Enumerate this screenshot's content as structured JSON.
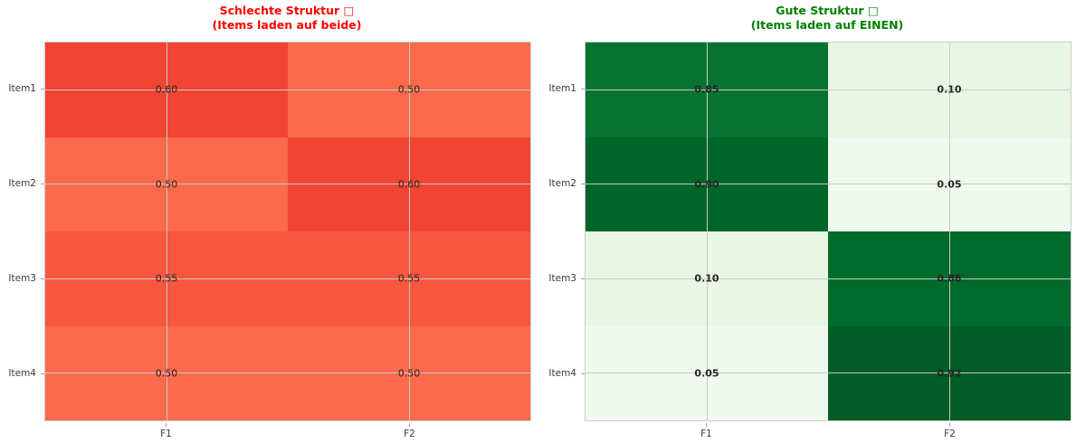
{
  "chart_data": [
    {
      "type": "heatmap",
      "title": "Schlechte Struktur □",
      "subtitle": "(Items laden auf beide)",
      "title_color": "#ff0000",
      "colormap": "Reds",
      "vmin": 0,
      "vmax": 1,
      "x_categories": [
        "F1",
        "F2"
      ],
      "y_categories": [
        "Item1",
        "Item2",
        "Item3",
        "Item4"
      ],
      "values": [
        [
          0.6,
          0.5
        ],
        [
          0.5,
          0.6
        ],
        [
          0.55,
          0.55
        ],
        [
          0.5,
          0.5
        ]
      ],
      "annotations": [
        [
          "0.60",
          "0.50"
        ],
        [
          "0.50",
          "0.60"
        ],
        [
          "0.55",
          "0.55"
        ],
        [
          "0.50",
          "0.50"
        ]
      ],
      "annotations_bold": false,
      "legend": "none",
      "grid": true
    },
    {
      "type": "heatmap",
      "title": "Gute Struktur □",
      "subtitle": "(Items laden auf EINEN)",
      "title_color": "#008000",
      "colormap": "Greens",
      "vmin": 0,
      "vmax": 1,
      "x_categories": [
        "F1",
        "F2"
      ],
      "y_categories": [
        "Item1",
        "Item2",
        "Item3",
        "Item4"
      ],
      "values": [
        [
          0.85,
          0.1
        ],
        [
          0.9,
          0.05
        ],
        [
          0.1,
          0.88
        ],
        [
          0.05,
          0.92
        ]
      ],
      "annotations": [
        [
          "0.85",
          "0.10"
        ],
        [
          "0.90",
          "0.05"
        ],
        [
          "0.10",
          "0.88"
        ],
        [
          "0.05",
          "0.92"
        ]
      ],
      "annotations_bold": true,
      "legend": "none",
      "grid": true
    }
  ],
  "style": {
    "background": "#ffffff",
    "grid_color": "#c8c8c8",
    "frame_color": "#cccccc",
    "tick_color": "#9a9a9a",
    "tick_label_color": "#3a3a3a",
    "annotation_color": "#262626",
    "colormap_stops": {
      "Reds": [
        [
          0.0,
          "#fff5f0"
        ],
        [
          0.125,
          "#fee0d2"
        ],
        [
          0.25,
          "#fcbba1"
        ],
        [
          0.375,
          "#fc9272"
        ],
        [
          0.5,
          "#fb6a4a"
        ],
        [
          0.625,
          "#ef3b2c"
        ],
        [
          0.75,
          "#cb181d"
        ],
        [
          0.875,
          "#a50f15"
        ],
        [
          1.0,
          "#67000d"
        ]
      ],
      "Greens": [
        [
          0.0,
          "#f7fcf5"
        ],
        [
          0.125,
          "#e5f5e0"
        ],
        [
          0.25,
          "#c7e9c0"
        ],
        [
          0.375,
          "#a1d99b"
        ],
        [
          0.5,
          "#74c476"
        ],
        [
          0.625,
          "#41ab5d"
        ],
        [
          0.75,
          "#238b45"
        ],
        [
          0.875,
          "#006d2c"
        ],
        [
          1.0,
          "#00441b"
        ]
      ]
    }
  }
}
